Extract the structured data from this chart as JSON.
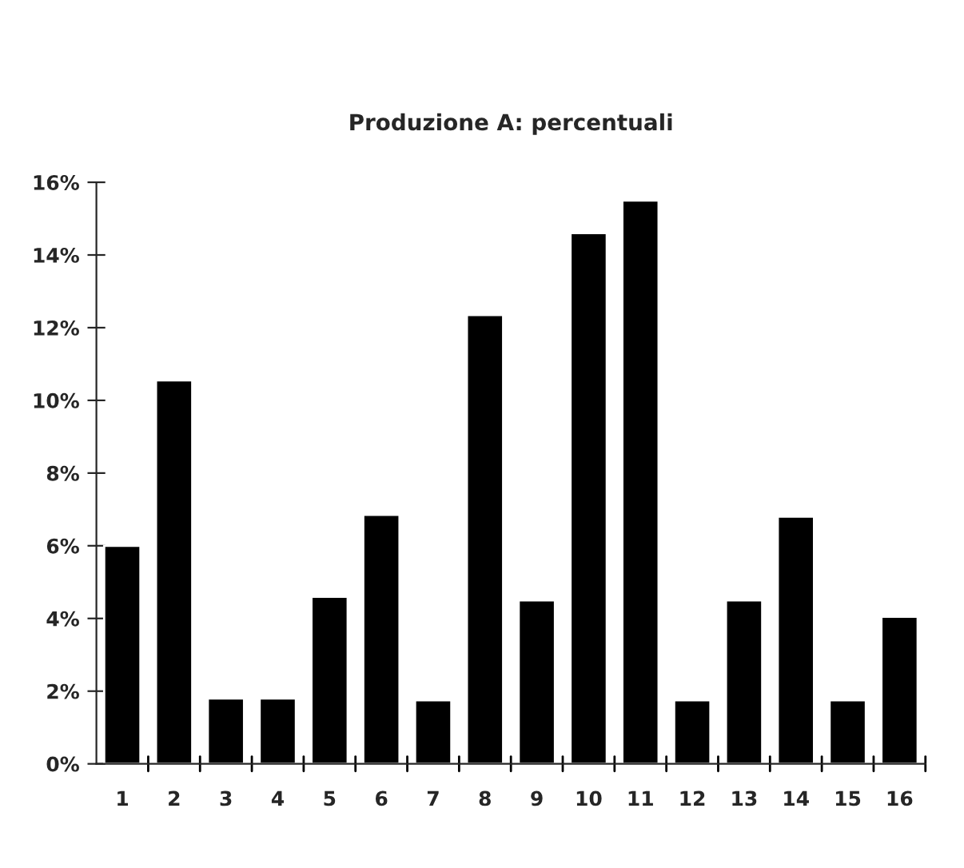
{
  "chart_data": {
    "type": "bar",
    "title": "Produzione A: percentuali",
    "categories": [
      "1",
      "2",
      "3",
      "4",
      "5",
      "6",
      "7",
      "8",
      "9",
      "10",
      "11",
      "12",
      "13",
      "14",
      "15",
      "16"
    ],
    "values": [
      6.0,
      10.55,
      1.8,
      1.8,
      4.6,
      6.85,
      1.75,
      12.35,
      4.5,
      14.6,
      15.5,
      1.75,
      4.5,
      6.8,
      1.75,
      4.05
    ],
    "color": "#000000",
    "ylim": [
      0,
      16
    ],
    "yticks": [
      {
        "value": 0,
        "label": "0%"
      },
      {
        "value": 2,
        "label": "2%"
      },
      {
        "value": 4,
        "label": "4%"
      },
      {
        "value": 6,
        "label": "6%"
      },
      {
        "value": 8,
        "label": "8%"
      },
      {
        "value": 10,
        "label": "10%"
      },
      {
        "value": 12,
        "label": "12%"
      },
      {
        "value": 14,
        "label": "14%"
      },
      {
        "value": 16,
        "label": "16%"
      }
    ],
    "grid": false,
    "legend": false
  }
}
